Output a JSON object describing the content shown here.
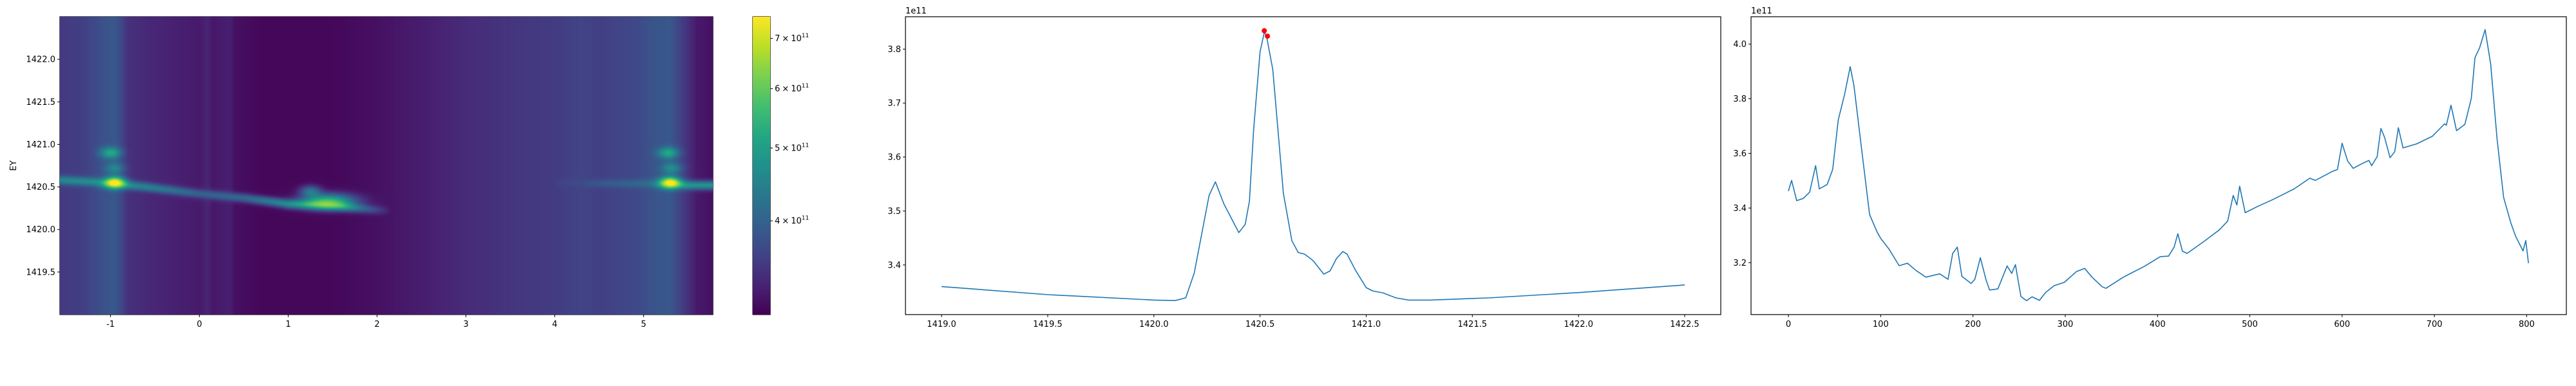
{
  "chart_data": [
    {
      "type": "heatmap",
      "ylabel": "EY",
      "xlim": [
        -1.57,
        5.78
      ],
      "ylim": [
        1419.0,
        1422.5
      ],
      "xticks": [
        "-1",
        "0",
        "1",
        "2",
        "3",
        "4",
        "5"
      ],
      "xtick_values": [
        -1,
        0,
        1,
        2,
        3,
        4,
        5
      ],
      "yticks": [
        "1419.5",
        "1420.0",
        "1420.5",
        "1421.0",
        "1421.5",
        "1422.0"
      ],
      "ytick_values": [
        1419.5,
        1420.0,
        1420.5,
        1421.0,
        1421.5,
        1422.0
      ],
      "colormap": "viridis",
      "colorbar": {
        "scale": "log",
        "range": [
          300000000000.0,
          748000000000.0
        ],
        "ticks": [
          {
            "value": 700000000000.0,
            "mantissa": "7",
            "times": "×",
            "base": "10",
            "exponent": "11"
          },
          {
            "value": 600000000000.0,
            "mantissa": "6",
            "times": "×",
            "base": "10",
            "exponent": "11"
          },
          {
            "value": 500000000000.0,
            "mantissa": "5",
            "times": "×",
            "base": "10",
            "exponent": "11"
          },
          {
            "value": 400000000000.0,
            "mantissa": "4",
            "times": "×",
            "base": "10",
            "exponent": "11"
          }
        ]
      },
      "intensity_unit": "1e11",
      "background_profile": [
        [
          -1.57,
          3.5
        ],
        [
          -1.3,
          3.55
        ],
        [
          -1.1,
          3.75
        ],
        [
          -0.95,
          3.85
        ],
        [
          -0.8,
          3.4
        ],
        [
          -0.5,
          3.3
        ],
        [
          0,
          3.2
        ],
        [
          0.1,
          3.3
        ],
        [
          0.15,
          3.18
        ],
        [
          0.35,
          3.25
        ],
        [
          0.4,
          3.12
        ],
        [
          0.7,
          3.05
        ],
        [
          1.5,
          3.05
        ],
        [
          2.0,
          3.12
        ],
        [
          2.6,
          3.25
        ],
        [
          3.0,
          3.35
        ],
        [
          3.5,
          3.45
        ],
        [
          4.0,
          3.52
        ],
        [
          4.3,
          3.6
        ],
        [
          4.5,
          3.55
        ],
        [
          4.9,
          3.65
        ],
        [
          5.1,
          3.8
        ],
        [
          5.3,
          3.85
        ],
        [
          5.45,
          3.5
        ],
        [
          5.6,
          3.2
        ],
        [
          5.78,
          3.12
        ]
      ],
      "ridge": [
        [
          -1.57,
          1420.58,
          4.6
        ],
        [
          -1.2,
          1420.56,
          4.7
        ],
        [
          -0.6,
          1420.5,
          4.5
        ],
        [
          0,
          1420.42,
          4.0
        ],
        [
          0.5,
          1420.37,
          4.1
        ],
        [
          1.0,
          1420.3,
          4.6
        ],
        [
          1.6,
          1420.27,
          4.6
        ],
        [
          2.0,
          1420.23,
          3.6
        ],
        [
          2.2,
          1420.22,
          3.05
        ],
        [
          4.0,
          1420.55,
          3.55
        ],
        [
          4.6,
          1420.54,
          3.9
        ],
        [
          5.0,
          1420.54,
          4.1
        ],
        [
          5.5,
          1420.52,
          4.8
        ],
        [
          5.78,
          1420.52,
          4.8
        ]
      ],
      "spots": [
        {
          "x": -0.95,
          "y": 1420.55,
          "value": 7.3
        },
        {
          "x": -1.0,
          "y": 1420.9,
          "value": 5.2
        },
        {
          "x": -0.95,
          "y": 1420.72,
          "value": 4.6
        },
        {
          "x": 1.45,
          "y": 1420.33,
          "value": 5.5
        },
        {
          "x": 1.25,
          "y": 1420.45,
          "value": 4.2
        },
        {
          "x": 5.3,
          "y": 1420.55,
          "value": 7.3
        },
        {
          "x": 5.28,
          "y": 1420.9,
          "value": 5.2
        },
        {
          "x": 5.32,
          "y": 1420.72,
          "value": 4.7
        }
      ]
    },
    {
      "type": "line",
      "xlim": [
        1418.83,
        1422.67
      ],
      "ylim": [
        3.308,
        3.86
      ],
      "y_offset_text": "1e11",
      "xticks": [
        "1419.0",
        "1419.5",
        "1420.0",
        "1420.5",
        "1421.0",
        "1421.5",
        "1422.0",
        "1422.5"
      ],
      "xtick_values": [
        1419.0,
        1419.5,
        1420.0,
        1420.5,
        1421.0,
        1421.5,
        1422.0,
        1422.5
      ],
      "yticks": [
        "3.4",
        "3.5",
        "3.6",
        "3.7",
        "3.8"
      ],
      "ytick_values": [
        3.4,
        3.5,
        3.6,
        3.7,
        3.8
      ],
      "line_color": "#1f77b4",
      "marker_color": "#ff0000",
      "points": [
        [
          1419.0,
          3.36
        ],
        [
          1419.5,
          3.345
        ],
        [
          1420.0,
          3.335
        ],
        [
          1420.1,
          3.334
        ],
        [
          1420.15,
          3.339
        ],
        [
          1420.19,
          3.385
        ],
        [
          1420.26,
          3.529
        ],
        [
          1420.29,
          3.554
        ],
        [
          1420.33,
          3.513
        ],
        [
          1420.4,
          3.46
        ],
        [
          1420.43,
          3.475
        ],
        [
          1420.45,
          3.518
        ],
        [
          1420.47,
          3.652
        ],
        [
          1420.5,
          3.795
        ],
        [
          1420.52,
          3.831
        ],
        [
          1420.53,
          3.825
        ],
        [
          1420.56,
          3.762
        ],
        [
          1420.61,
          3.533
        ],
        [
          1420.65,
          3.445
        ],
        [
          1420.68,
          3.423
        ],
        [
          1420.71,
          3.42
        ],
        [
          1420.75,
          3.408
        ],
        [
          1420.8,
          3.383
        ],
        [
          1420.83,
          3.389
        ],
        [
          1420.86,
          3.412
        ],
        [
          1420.89,
          3.425
        ],
        [
          1420.91,
          3.42
        ],
        [
          1420.95,
          3.39
        ],
        [
          1421.0,
          3.358
        ],
        [
          1421.03,
          3.352
        ],
        [
          1421.08,
          3.348
        ],
        [
          1421.14,
          3.339
        ],
        [
          1421.2,
          3.335
        ],
        [
          1421.3,
          3.335
        ],
        [
          1421.58,
          3.339
        ],
        [
          1422.01,
          3.349
        ],
        [
          1422.5,
          3.363
        ]
      ],
      "markers": [
        [
          1420.52,
          3.834
        ],
        [
          1420.535,
          3.824
        ]
      ]
    },
    {
      "type": "line",
      "xlim": [
        -40.5,
        843
      ],
      "ylim": [
        3.01,
        4.1
      ],
      "y_offset_text": "1e11",
      "xticks": [
        "0",
        "100",
        "200",
        "300",
        "400",
        "500",
        "600",
        "700",
        "800"
      ],
      "xtick_values": [
        0,
        100,
        200,
        300,
        400,
        500,
        600,
        700,
        800
      ],
      "yticks": [
        "3.2",
        "3.4",
        "3.6",
        "3.8",
        "4.0"
      ],
      "ytick_values": [
        3.2,
        3.4,
        3.6,
        3.8,
        4.0
      ],
      "line_color": "#1f77b4",
      "points": [
        [
          0,
          3.462
        ],
        [
          3.5,
          3.501
        ],
        [
          9,
          3.427
        ],
        [
          16,
          3.435
        ],
        [
          23,
          3.458
        ],
        [
          29.5,
          3.555
        ],
        [
          33.5,
          3.47
        ],
        [
          42,
          3.486
        ],
        [
          48,
          3.541
        ],
        [
          54,
          3.722
        ],
        [
          61,
          3.817
        ],
        [
          67,
          3.917
        ],
        [
          71,
          3.848
        ],
        [
          80,
          3.596
        ],
        [
          88,
          3.376
        ],
        [
          96,
          3.313
        ],
        [
          100,
          3.289
        ],
        [
          109,
          3.25
        ],
        [
          120,
          3.189
        ],
        [
          129,
          3.198
        ],
        [
          138,
          3.172
        ],
        [
          149,
          3.147
        ],
        [
          164,
          3.159
        ],
        [
          173,
          3.139
        ],
        [
          178,
          3.234
        ],
        [
          183,
          3.257
        ],
        [
          188,
          3.15
        ],
        [
          198,
          3.124
        ],
        [
          202,
          3.139
        ],
        [
          208,
          3.218
        ],
        [
          214,
          3.139
        ],
        [
          218,
          3.1
        ],
        [
          227,
          3.104
        ],
        [
          237,
          3.188
        ],
        [
          242,
          3.161
        ],
        [
          246,
          3.193
        ],
        [
          252,
          3.076
        ],
        [
          258,
          3.061
        ],
        [
          264,
          3.075
        ],
        [
          272,
          3.062
        ],
        [
          279,
          3.092
        ],
        [
          288,
          3.116
        ],
        [
          299,
          3.128
        ],
        [
          312,
          3.167
        ],
        [
          321,
          3.179
        ],
        [
          329,
          3.147
        ],
        [
          340,
          3.112
        ],
        [
          344,
          3.106
        ],
        [
          363,
          3.147
        ],
        [
          386,
          3.187
        ],
        [
          403,
          3.222
        ],
        [
          412,
          3.224
        ],
        [
          418,
          3.257
        ],
        [
          422,
          3.306
        ],
        [
          427,
          3.242
        ],
        [
          432,
          3.234
        ],
        [
          450,
          3.277
        ],
        [
          467,
          3.32
        ],
        [
          476,
          3.352
        ],
        [
          482,
          3.446
        ],
        [
          486,
          3.411
        ],
        [
          489,
          3.48
        ],
        [
          495,
          3.383
        ],
        [
          508,
          3.405
        ],
        [
          525,
          3.431
        ],
        [
          548,
          3.47
        ],
        [
          565,
          3.509
        ],
        [
          571,
          3.501
        ],
        [
          589,
          3.533
        ],
        [
          595,
          3.541
        ],
        [
          600,
          3.637
        ],
        [
          606,
          3.572
        ],
        [
          612,
          3.545
        ],
        [
          623,
          3.565
        ],
        [
          629,
          3.574
        ],
        [
          632,
          3.555
        ],
        [
          638,
          3.588
        ],
        [
          642,
          3.691
        ],
        [
          646,
          3.659
        ],
        [
          652,
          3.584
        ],
        [
          657,
          3.606
        ],
        [
          661,
          3.694
        ],
        [
          666,
          3.62
        ],
        [
          681,
          3.635
        ],
        [
          698,
          3.663
        ],
        [
          711,
          3.708
        ],
        [
          713,
          3.703
        ],
        [
          718,
          3.776
        ],
        [
          724,
          3.683
        ],
        [
          733,
          3.706
        ],
        [
          740,
          3.801
        ],
        [
          744,
          3.95
        ],
        [
          749,
          3.986
        ],
        [
          755,
          4.053
        ],
        [
          761,
          3.927
        ],
        [
          768,
          3.651
        ],
        [
          775,
          3.439
        ],
        [
          783,
          3.344
        ],
        [
          788,
          3.297
        ],
        [
          796,
          3.243
        ],
        [
          799,
          3.281
        ],
        [
          802,
          3.198
        ]
      ]
    }
  ]
}
